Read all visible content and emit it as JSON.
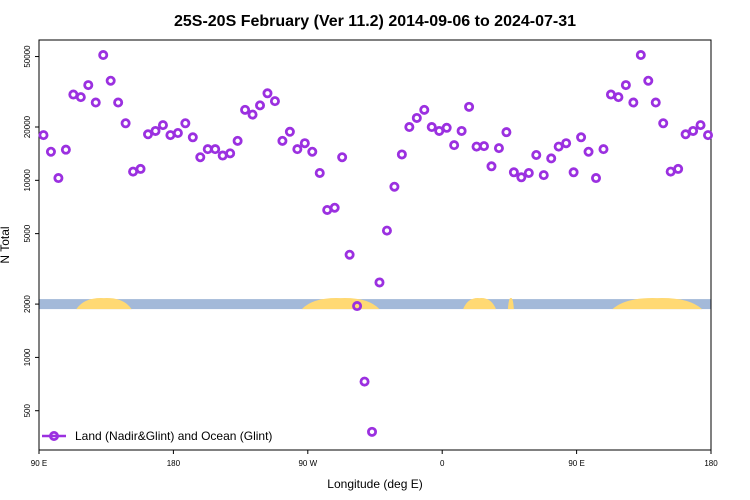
{
  "chart_data": {
    "type": "scatter",
    "title": "25S-20S February (Ver 11.2)   2014-09-06 to 2024-07-31",
    "xlabel": "Longitude (deg E)",
    "ylabel": "N Total",
    "xlim": [
      90,
      540
    ],
    "ylim": [
      300,
      62000
    ],
    "yscale": "log",
    "x_ticks": [
      {
        "value": 90,
        "label": "90 E"
      },
      {
        "value": 180,
        "label": "180"
      },
      {
        "value": 270,
        "label": "90 W"
      },
      {
        "value": 360,
        "label": "0"
      },
      {
        "value": 450,
        "label": "90 E"
      },
      {
        "value": 540,
        "label": "180"
      }
    ],
    "y_ticks": [
      {
        "value": 500,
        "label": "500"
      },
      {
        "value": 1000,
        "label": "1000"
      },
      {
        "value": 2000,
        "label": "2000"
      },
      {
        "value": 5000,
        "label": "5000"
      },
      {
        "value": 10000,
        "label": "10000"
      },
      {
        "value": 20000,
        "label": "20000"
      },
      {
        "value": 50000,
        "label": "50000"
      }
    ],
    "background_map": {
      "y_value": 2000,
      "ocean_color": "#A3B9D9",
      "land_color": "#FFD973",
      "land_ranges": [
        [
          115,
          152
        ],
        [
          266,
          318
        ],
        [
          374,
          396
        ],
        [
          404,
          408
        ],
        [
          474,
          534
        ]
      ]
    },
    "legend": {
      "position": "bottom-left",
      "label": "Land (Nadir&Glint) and Ocean (Glint)"
    },
    "grid": false,
    "series": [
      {
        "name": "Land (Nadir&Glint) and Ocean (Glint)",
        "color": "#9B30E0",
        "marker": "open-circle",
        "points": [
          [
            93,
            18000
          ],
          [
            98,
            14500
          ],
          [
            103,
            10300
          ],
          [
            108,
            14900
          ],
          [
            113,
            30500
          ],
          [
            118,
            29500
          ],
          [
            123,
            34500
          ],
          [
            128,
            27500
          ],
          [
            133,
            51000
          ],
          [
            138,
            36500
          ],
          [
            143,
            27500
          ],
          [
            148,
            21000
          ],
          [
            153,
            11200
          ],
          [
            158,
            11600
          ],
          [
            163,
            18200
          ],
          [
            168,
            19000
          ],
          [
            173,
            20500
          ],
          [
            178,
            18000
          ],
          [
            183,
            18500
          ],
          [
            188,
            21000
          ],
          [
            193,
            17500
          ],
          [
            198,
            13500
          ],
          [
            203,
            15000
          ],
          [
            208,
            15000
          ],
          [
            213,
            13800
          ],
          [
            218,
            14200
          ],
          [
            223,
            16700
          ],
          [
            228,
            25000
          ],
          [
            233,
            23500
          ],
          [
            238,
            26500
          ],
          [
            243,
            31000
          ],
          [
            248,
            28000
          ],
          [
            253,
            16700
          ],
          [
            258,
            18800
          ],
          [
            263,
            15000
          ],
          [
            268,
            16200
          ],
          [
            273,
            14500
          ],
          [
            278,
            11000
          ],
          [
            283,
            6800
          ],
          [
            288,
            7000
          ],
          [
            293,
            13500
          ],
          [
            298,
            3800
          ],
          [
            303,
            1950
          ],
          [
            308,
            730
          ],
          [
            313,
            380
          ],
          [
            318,
            2650
          ],
          [
            323,
            5200
          ],
          [
            328,
            9200
          ],
          [
            333,
            14000
          ],
          [
            338,
            20000
          ],
          [
            343,
            22500
          ],
          [
            348,
            25000
          ],
          [
            353,
            20000
          ],
          [
            358,
            19000
          ],
          [
            363,
            19800
          ],
          [
            368,
            15800
          ],
          [
            373,
            19000
          ],
          [
            378,
            26000
          ],
          [
            383,
            15500
          ],
          [
            388,
            15600
          ],
          [
            393,
            12000
          ],
          [
            398,
            15200
          ],
          [
            403,
            18700
          ],
          [
            408,
            11100
          ],
          [
            413,
            10400
          ],
          [
            418,
            11000
          ],
          [
            423,
            13900
          ],
          [
            428,
            10700
          ],
          [
            433,
            13300
          ],
          [
            438,
            15500
          ],
          [
            443,
            16200
          ],
          [
            448,
            11100
          ],
          [
            453,
            17500
          ],
          [
            458,
            14500
          ],
          [
            463,
            10300
          ],
          [
            468,
            15000
          ],
          [
            473,
            30500
          ],
          [
            478,
            29500
          ],
          [
            483,
            34500
          ],
          [
            488,
            27500
          ],
          [
            493,
            51000
          ],
          [
            498,
            36500
          ],
          [
            503,
            27500
          ],
          [
            508,
            21000
          ],
          [
            513,
            11200
          ],
          [
            518,
            11600
          ],
          [
            523,
            18200
          ],
          [
            528,
            19000
          ],
          [
            533,
            20500
          ],
          [
            538,
            18000
          ]
        ]
      }
    ]
  }
}
